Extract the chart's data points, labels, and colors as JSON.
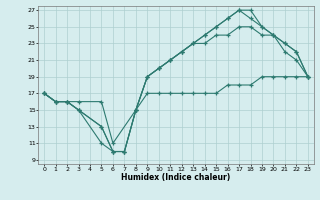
{
  "title": "",
  "xlabel": "Humidex (Indice chaleur)",
  "bg_color": "#d6edee",
  "grid_color": "#aed0d0",
  "line_color": "#2d7a70",
  "xlim": [
    -0.5,
    23.5
  ],
  "ylim": [
    8.5,
    27.5
  ],
  "xticks": [
    0,
    1,
    2,
    3,
    4,
    5,
    6,
    7,
    8,
    9,
    10,
    11,
    12,
    13,
    14,
    15,
    16,
    17,
    18,
    19,
    20,
    21,
    22,
    23
  ],
  "yticks": [
    9,
    11,
    13,
    15,
    17,
    19,
    21,
    23,
    25,
    27
  ],
  "line1_x": [
    0,
    1,
    2,
    3,
    5,
    6,
    7,
    8,
    9,
    10,
    11,
    12,
    13,
    14,
    15,
    16,
    17,
    18,
    19,
    20,
    21,
    22,
    23
  ],
  "line1_y": [
    17,
    16,
    16,
    15,
    13,
    10,
    10,
    15,
    19,
    20,
    21,
    22,
    23,
    24,
    25,
    26,
    27,
    27,
    25,
    24,
    22,
    21,
    19
  ],
  "line2_x": [
    0,
    1,
    2,
    3,
    5,
    6,
    7,
    8,
    9,
    10,
    11,
    12,
    13,
    14,
    15,
    16,
    17,
    18,
    19,
    20,
    21,
    22,
    23
  ],
  "line2_y": [
    17,
    16,
    16,
    15,
    13,
    10,
    10,
    15,
    19,
    20,
    21,
    22,
    23,
    24,
    25,
    26,
    27,
    26,
    25,
    24,
    23,
    22,
    19
  ],
  "line3_x": [
    0,
    1,
    2,
    3,
    5,
    6,
    7,
    8,
    9,
    10,
    11,
    12,
    13,
    14,
    15,
    16,
    17,
    18,
    19,
    20,
    21,
    22,
    23
  ],
  "line3_y": [
    17,
    16,
    16,
    15,
    11,
    10,
    10,
    15,
    19,
    20,
    21,
    22,
    23,
    23,
    24,
    24,
    25,
    25,
    24,
    24,
    23,
    22,
    19
  ],
  "line4_x": [
    0,
    1,
    2,
    3,
    5,
    6,
    8,
    9,
    10,
    11,
    12,
    13,
    14,
    15,
    16,
    17,
    18,
    19,
    20,
    21,
    22,
    23
  ],
  "line4_y": [
    17,
    16,
    16,
    16,
    16,
    11,
    15,
    17,
    17,
    17,
    17,
    17,
    17,
    17,
    18,
    18,
    18,
    19,
    19,
    19,
    19,
    19
  ]
}
